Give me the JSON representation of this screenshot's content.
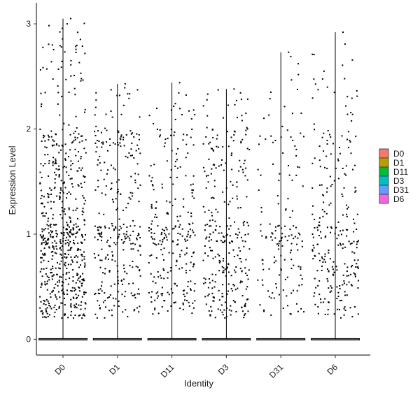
{
  "chart_data": {
    "type": "violin",
    "title": "",
    "xlabel": "Identity",
    "ylabel": "Expression Level",
    "categories": [
      "D0",
      "D1",
      "D11",
      "D3",
      "D31",
      "D6"
    ],
    "colors": [
      "#F8766D",
      "#B79F00",
      "#00BA38",
      "#00BFC4",
      "#619CFF",
      "#F564E3"
    ],
    "yticks": [
      0,
      1,
      2,
      3
    ],
    "ylim": [
      -0.15,
      3.2
    ],
    "max_values": [
      3.05,
      2.43,
      2.44,
      2.38,
      2.73,
      2.92
    ],
    "violin_height_at_zero": 0,
    "legend_position": "right",
    "grid": false,
    "jitter_points": "one dot per cell: a dense band at 0 for every group, non-zero values spread mostly between 0.2 and 2.5"
  }
}
